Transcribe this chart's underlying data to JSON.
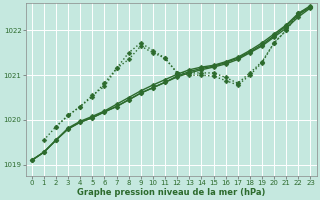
{
  "bg_color": "#c5e8df",
  "grid_color": "#ffffff",
  "line_color": "#2d6b2d",
  "xlabel": "Graphe pression niveau de la mer (hPa)",
  "ylim": [
    1018.75,
    1022.6
  ],
  "xlim": [
    -0.5,
    23.5
  ],
  "yticks": [
    1019,
    1020,
    1021,
    1022
  ],
  "xticks": [
    0,
    1,
    2,
    3,
    4,
    5,
    6,
    7,
    8,
    9,
    10,
    11,
    12,
    13,
    14,
    15,
    16,
    17,
    18,
    19,
    20,
    21,
    22,
    23
  ],
  "lines": [
    {
      "x": [
        0,
        1,
        2,
        3,
        4,
        5,
        6,
        7,
        8,
        9,
        10,
        11,
        12,
        13,
        14,
        15,
        16,
        17,
        18,
        19,
        20,
        21,
        22,
        23
      ],
      "y": [
        1019.1,
        1019.28,
        1019.55,
        1019.8,
        1019.95,
        1020.05,
        1020.18,
        1020.3,
        1020.45,
        1020.6,
        1020.72,
        1020.84,
        1020.96,
        1021.05,
        1021.12,
        1021.18,
        1021.25,
        1021.35,
        1021.5,
        1021.65,
        1021.85,
        1022.05,
        1022.3,
        1022.5
      ],
      "style": "-",
      "marker": "D",
      "markersize": 2.5,
      "lw": 1.0
    },
    {
      "x": [
        0,
        1,
        2,
        3,
        4,
        5,
        6,
        7,
        8,
        9,
        10,
        11,
        12,
        13,
        14,
        15,
        16,
        17,
        18,
        19,
        20,
        21,
        22,
        23
      ],
      "y": [
        1019.1,
        1019.28,
        1019.55,
        1019.8,
        1019.95,
        1020.05,
        1020.18,
        1020.3,
        1020.45,
        1020.6,
        1020.72,
        1020.84,
        1020.98,
        1021.08,
        1021.15,
        1021.2,
        1021.28,
        1021.38,
        1021.52,
        1021.68,
        1021.88,
        1022.1,
        1022.35,
        1022.52
      ],
      "style": "-",
      "marker": "D",
      "markersize": 2.5,
      "lw": 1.0
    },
    {
      "x": [
        0,
        1,
        2,
        3,
        4,
        5,
        6,
        7,
        8,
        9,
        10,
        11,
        12,
        13,
        14,
        15,
        16,
        17,
        18,
        19,
        20,
        21,
        22,
        23
      ],
      "y": [
        1019.1,
        1019.28,
        1019.55,
        1019.82,
        1019.97,
        1020.08,
        1020.2,
        1020.35,
        1020.5,
        1020.65,
        1020.78,
        1020.9,
        1021.02,
        1021.12,
        1021.18,
        1021.22,
        1021.3,
        1021.4,
        1021.55,
        1021.72,
        1021.92,
        1022.12,
        1022.38,
        1022.55
      ],
      "style": "-",
      "marker": "D",
      "markersize": 2.5,
      "lw": 1.0
    },
    {
      "x": [
        1,
        2,
        3,
        4,
        5,
        6,
        7,
        8,
        9,
        10,
        11,
        12,
        13,
        14,
        15,
        16,
        17,
        18,
        19,
        20,
        21,
        22,
        23
      ],
      "y": [
        1019.55,
        1019.85,
        1020.1,
        1020.3,
        1020.55,
        1020.75,
        1021.15,
        1021.35,
        1021.65,
        1021.5,
        1021.38,
        1021.05,
        1021.05,
        1021.05,
        1021.05,
        1020.95,
        1020.82,
        1021.05,
        1021.3,
        1021.72,
        1022.0,
        1022.38,
        1022.52
      ],
      "style": ":",
      "marker": "D",
      "markersize": 2.5,
      "lw": 1.0
    },
    {
      "x": [
        2,
        3,
        4,
        5,
        6,
        7,
        8,
        9,
        10,
        11,
        12,
        13,
        14,
        15,
        16,
        17,
        18,
        19,
        20,
        21,
        22,
        23
      ],
      "y": [
        1019.85,
        1020.1,
        1020.3,
        1020.52,
        1020.82,
        1021.15,
        1021.5,
        1021.72,
        1021.55,
        1021.38,
        1021.05,
        1021.0,
        1021.0,
        1020.98,
        1020.88,
        1020.78,
        1021.0,
        1021.28,
        1021.72,
        1022.0,
        1022.38,
        1022.52
      ],
      "style": ":",
      "marker": "D",
      "markersize": 2.5,
      "lw": 1.0
    }
  ]
}
